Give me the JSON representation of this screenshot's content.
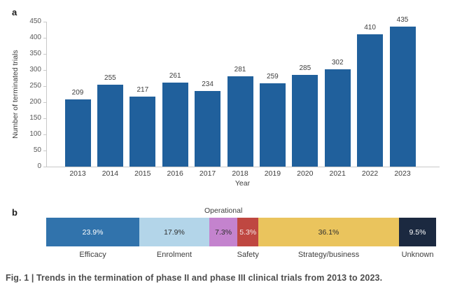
{
  "figure": {
    "panel_a_label": "a",
    "panel_b_label": "b",
    "caption": "Fig. 1 | Trends in the termination of phase II and phase III clinical trials from 2013 to 2023."
  },
  "colors": {
    "bar_blue": "#20609c",
    "axis_line": "#c8c8c8",
    "tick_text": "#595959",
    "label_text": "#3d3d3d",
    "caption_text": "#4d4d4d"
  },
  "chart_data": [
    {
      "type": "bar",
      "panel": "a",
      "categories": [
        "2013",
        "2014",
        "2015",
        "2016",
        "2017",
        "2018",
        "2019",
        "2020",
        "2021",
        "2022",
        "2023"
      ],
      "values": [
        209,
        255,
        217,
        261,
        234,
        281,
        259,
        285,
        302,
        410,
        435
      ],
      "title": "",
      "xlabel": "Year",
      "ylabel": "Number of terminated trials",
      "ylim": [
        0,
        450
      ],
      "yticks": [
        0,
        50,
        100,
        150,
        200,
        250,
        300,
        350,
        400,
        450
      ],
      "grid": false,
      "bar_color": "#20609c"
    },
    {
      "type": "bar",
      "panel": "b",
      "orientation": "horizontal-stacked",
      "title": "",
      "segments": [
        {
          "label": "Efficacy",
          "value_pct": 23.9,
          "pct_label": "23.9%",
          "color": "#3173ac",
          "text_color": "#ffffff",
          "label_position": "below"
        },
        {
          "label": "Enrolment",
          "value_pct": 17.9,
          "pct_label": "17.9%",
          "color": "#b3d5e9",
          "text_color": "#2e2e2e",
          "label_position": "below"
        },
        {
          "label": "Operational",
          "value_pct": 7.3,
          "pct_label": "7.3%",
          "color": "#c483ce",
          "text_color": "#2e2e2e",
          "label_position": "above"
        },
        {
          "label": "Safety",
          "value_pct": 5.3,
          "pct_label": "5.3%",
          "color": "#bf4741",
          "text_color": "#f6e8e8",
          "label_position": "below"
        },
        {
          "label": "Strategy/business",
          "value_pct": 36.1,
          "pct_label": "36.1%",
          "color": "#eac45d",
          "text_color": "#2e2e2e",
          "label_position": "below"
        },
        {
          "label": "Unknown",
          "value_pct": 9.5,
          "pct_label": "9.5%",
          "color": "#1b2940",
          "text_color": "#ffffff",
          "label_position": "below"
        }
      ]
    }
  ]
}
